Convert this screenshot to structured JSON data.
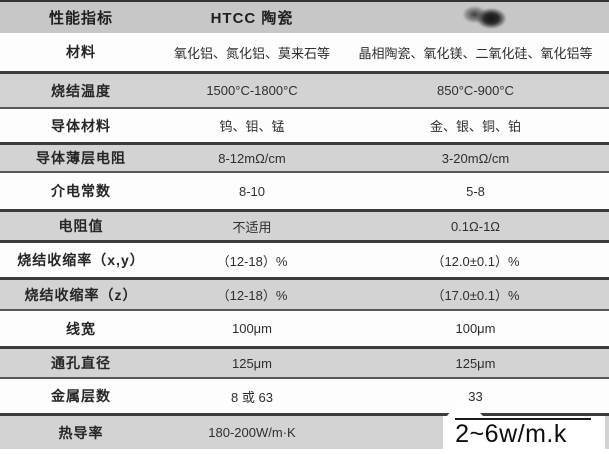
{
  "table": {
    "header": {
      "col1": "性能指标",
      "col2": "HTCC 陶瓷",
      "col3": ""
    },
    "rows": [
      {
        "label": "材料",
        "htcc": "氧化铝、氮化铝、莫来石等",
        "ltcc": "晶相陶瓷、氧化镁、二氧化硅、氧化铝等"
      },
      {
        "label": "烧结温度",
        "htcc": "1500°C-1800°C",
        "ltcc": "850°C-900°C"
      },
      {
        "label": "导体材料",
        "htcc": "钨、钼、锰",
        "ltcc": "金、银、铜、铂"
      },
      {
        "label": "导体薄层电阻",
        "htcc": "8-12mΩ/cm",
        "ltcc": "3-20mΩ/cm"
      },
      {
        "label": "介电常数",
        "htcc": "8-10",
        "ltcc": "5-8"
      },
      {
        "label": "电阻值",
        "htcc": "不适用",
        "ltcc": "0.1Ω-1Ω"
      },
      {
        "label": "烧结收缩率（x,y）",
        "htcc": "（12-18）%",
        "ltcc": "（12.0±0.1）%"
      },
      {
        "label": "烧结收缩率（z）",
        "htcc": "（12-18）%",
        "ltcc": "（17.0±0.1）%"
      },
      {
        "label": "线宽",
        "htcc": "100μm",
        "ltcc": "100μm"
      },
      {
        "label": "通孔直径",
        "htcc": "125μm",
        "ltcc": "125μm"
      },
      {
        "label": "金属层数",
        "htcc": "8 或 63",
        "ltcc": "33"
      },
      {
        "label": "热导率",
        "htcc": "180-200W/m·K",
        "ltcc": ""
      }
    ],
    "overlay": {
      "thermal_note": "2~6w/m.k"
    },
    "colors": {
      "header_gray": "#c7c7c7",
      "band_gray": "#d3d3d3",
      "band_white": "#fdfdfd",
      "separator": "#3c3c3c",
      "text": "#262626"
    }
  }
}
